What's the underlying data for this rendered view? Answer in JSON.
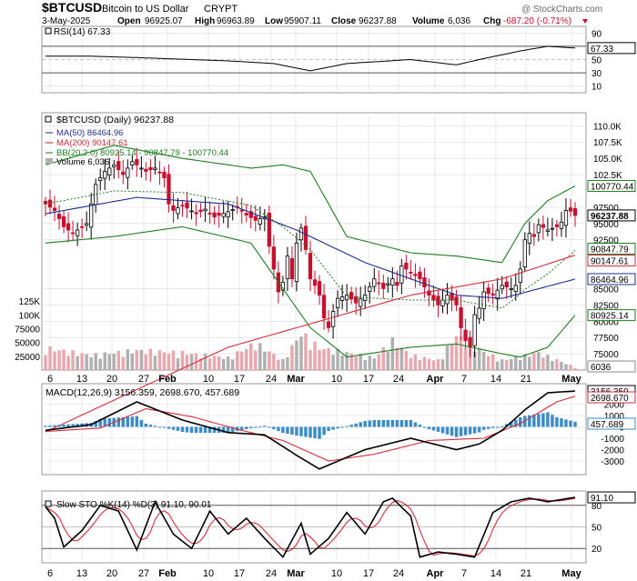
{
  "header": {
    "symbol": "$BTCUSD",
    "name": "Bitcoin to US Dollar",
    "exchange": "CRYPT",
    "copyright": "@ StockCharts.com",
    "date": "3-May-2025",
    "open_label": "Open",
    "open": "96925.07",
    "high_label": "High",
    "high": "96963.89",
    "low_label": "Low",
    "low": "95907.11",
    "close_label": "Close",
    "close": "96237.88",
    "volume_label": "Volume",
    "volume": "6,036",
    "chg_label": "Chg",
    "chg": "-687.20 (-0.71%)"
  },
  "colors": {
    "up": "#000000",
    "down": "#c8102e",
    "upFill": "#ffffff",
    "ma50": "#1f2f8c",
    "ma200": "#d22e3a",
    "bb": "#1e7d1e",
    "sar": "#1e7d1e",
    "macd": "#000000",
    "signal": "#d22e3a",
    "hist": "#3b8cc7",
    "volUp": "#b0b0b0",
    "volDown": "#e8a8b0",
    "grid": "#d9d9d9",
    "slow_k": "#000000",
    "slow_d": "#d22e3a"
  },
  "panels": {
    "rsi": {
      "legend": "RSI(14) 67.33",
      "value_label": "67.33",
      "ticks": [
        "90",
        "70",
        "50",
        "30",
        "10"
      ]
    },
    "price": {
      "legend_main": "$BTCUSD (Daily) 96237.88",
      "legend_ma50": "MA(50) 86464.96",
      "legend_ma200": "MA(200) 90147.61",
      "legend_bb": "BB(20,2.0) 80925.14 - 90847.79 - 100770.44",
      "legend_vol": "Volume 6,036",
      "ticks": [
        "110.0K",
        "107.5K",
        "105.0K",
        "102.5K",
        "97500",
        "95000",
        "92500",
        "85000",
        "82500",
        "80000",
        "77500",
        "75000"
      ],
      "labels": {
        "bb_upper": "100770.44",
        "close": "96237.88",
        "m1": "90847.79",
        "ma200": "90147.61",
        "ma50": "86464.96",
        "bb_lower": "80925.14",
        "vol": "6036"
      },
      "vol_ticks": [
        "125K",
        "100K",
        "75000",
        "50000",
        "25000"
      ]
    },
    "macd": {
      "legend": "MACD(12,26,9) 3156.359, 2698.670, 457.689",
      "ticks": [
        "2000",
        "1000",
        "0",
        "-1000",
        "-2000",
        "-3000"
      ],
      "labels": {
        "macd": "3156.359",
        "signal": "2698.670",
        "hist": "457.689"
      }
    },
    "sto": {
      "legend": "Slow STO %K(14) %D(3) 91.10, 90.01",
      "ticks": [
        "80",
        "50",
        "20"
      ],
      "value_label": "91.10"
    }
  },
  "x_axis": [
    "6",
    "13",
    "20",
    "27",
    "Feb",
    "10",
    "17",
    "24",
    "Mar",
    "10",
    "17",
    "24",
    "Apr",
    "7",
    "14",
    "21",
    "May"
  ],
  "chart_data": {
    "type": "candlestick",
    "title": "$BTCUSD Bitcoin to US Dollar CRYPT",
    "period": "Daily",
    "x_ticks": [
      "6",
      "13",
      "20",
      "27",
      "Feb",
      "10",
      "17",
      "24",
      "Mar",
      "10",
      "17",
      "24",
      "Apr",
      "7",
      "14",
      "21",
      "May"
    ],
    "close_keyframes": [
      [
        0,
        98000
      ],
      [
        2,
        97000
      ],
      [
        4,
        94500
      ],
      [
        6,
        93500
      ],
      [
        9,
        95000
      ],
      [
        11,
        101000
      ],
      [
        13,
        103000
      ],
      [
        15,
        104000
      ],
      [
        17,
        102500
      ],
      [
        19,
        104500
      ],
      [
        22,
        103000
      ],
      [
        24,
        103500
      ],
      [
        26,
        102000
      ],
      [
        27,
        98000
      ],
      [
        28,
        97000
      ],
      [
        30,
        97800
      ],
      [
        33,
        96500
      ],
      [
        35,
        97200
      ],
      [
        37,
        96000
      ],
      [
        40,
        96800
      ],
      [
        42,
        97500
      ],
      [
        44,
        96300
      ],
      [
        46,
        95500
      ],
      [
        48,
        96000
      ],
      [
        49,
        91500
      ],
      [
        50,
        88000
      ],
      [
        51,
        84500
      ],
      [
        52,
        86000
      ],
      [
        53,
        90000
      ],
      [
        54,
        86500
      ],
      [
        55,
        92000
      ],
      [
        56,
        94300
      ],
      [
        57,
        91000
      ],
      [
        58,
        86500
      ],
      [
        59,
        85500
      ],
      [
        60,
        84000
      ],
      [
        61,
        80500
      ],
      [
        62,
        79000
      ],
      [
        63,
        81500
      ],
      [
        64,
        83500
      ],
      [
        66,
        84000
      ],
      [
        68,
        82800
      ],
      [
        70,
        84000
      ],
      [
        72,
        86500
      ],
      [
        74,
        85000
      ],
      [
        76,
        86500
      ],
      [
        77,
        85500
      ],
      [
        78,
        88500
      ],
      [
        80,
        87500
      ],
      [
        82,
        86500
      ],
      [
        84,
        84000
      ],
      [
        86,
        82500
      ],
      [
        88,
        84000
      ],
      [
        90,
        82500
      ],
      [
        91,
        79000
      ],
      [
        92,
        77000
      ],
      [
        93,
        76000
      ],
      [
        94,
        81000
      ],
      [
        95,
        82000
      ],
      [
        96,
        84500
      ],
      [
        98,
        84000
      ],
      [
        100,
        85500
      ],
      [
        102,
        85000
      ],
      [
        103,
        85500
      ],
      [
        104,
        88000
      ],
      [
        105,
        92500
      ],
      [
        106,
        93500
      ],
      [
        107,
        93000
      ],
      [
        108,
        94800
      ],
      [
        110,
        94000
      ],
      [
        112,
        94500
      ],
      [
        113,
        95200
      ],
      [
        114,
        97000
      ],
      [
        115,
        96900
      ],
      [
        116,
        96237.88
      ]
    ],
    "ma50_keyframes": [
      [
        0,
        96500
      ],
      [
        20,
        99000
      ],
      [
        40,
        98000
      ],
      [
        55,
        94000
      ],
      [
        70,
        89000
      ],
      [
        90,
        84000
      ],
      [
        100,
        83500
      ],
      [
        116,
        86464.96
      ]
    ],
    "ma200_keyframes": [
      [
        0,
        63000
      ],
      [
        40,
        76000
      ],
      [
        80,
        84000
      ],
      [
        100,
        86500
      ],
      [
        116,
        90147.61
      ]
    ],
    "bb_upper_keyframes": [
      [
        0,
        104000
      ],
      [
        15,
        107000
      ],
      [
        30,
        105000
      ],
      [
        45,
        103500
      ],
      [
        52,
        104000
      ],
      [
        58,
        103000
      ],
      [
        66,
        93000
      ],
      [
        80,
        90500
      ],
      [
        90,
        90000
      ],
      [
        100,
        89000
      ],
      [
        105,
        95000
      ],
      [
        110,
        98500
      ],
      [
        116,
        100770.44
      ]
    ],
    "bb_lower_keyframes": [
      [
        0,
        92000
      ],
      [
        15,
        93000
      ],
      [
        30,
        94500
      ],
      [
        45,
        92000
      ],
      [
        52,
        85000
      ],
      [
        58,
        79000
      ],
      [
        66,
        74500
      ],
      [
        80,
        76000
      ],
      [
        90,
        76500
      ],
      [
        100,
        75000
      ],
      [
        104,
        74500
      ],
      [
        110,
        76000
      ],
      [
        116,
        80925.14
      ]
    ],
    "rsi_keyframes": [
      [
        0,
        55
      ],
      [
        10,
        55
      ],
      [
        20,
        53
      ],
      [
        40,
        48
      ],
      [
        50,
        44
      ],
      [
        58,
        33
      ],
      [
        66,
        44
      ],
      [
        80,
        50
      ],
      [
        90,
        42
      ],
      [
        95,
        50
      ],
      [
        104,
        63
      ],
      [
        110,
        70
      ],
      [
        116,
        67.33
      ]
    ],
    "macd_keyframes": [
      [
        0,
        -300
      ],
      [
        10,
        200
      ],
      [
        20,
        2200
      ],
      [
        30,
        600
      ],
      [
        40,
        -500
      ],
      [
        48,
        -700
      ],
      [
        55,
        -2500
      ],
      [
        60,
        -3700
      ],
      [
        70,
        -2000
      ],
      [
        80,
        -1000
      ],
      [
        90,
        -2000
      ],
      [
        95,
        -1500
      ],
      [
        100,
        -300
      ],
      [
        105,
        1500
      ],
      [
        110,
        3000
      ],
      [
        116,
        3156.359
      ]
    ],
    "signal_keyframes": [
      [
        0,
        -400
      ],
      [
        12,
        -100
      ],
      [
        22,
        1600
      ],
      [
        32,
        900
      ],
      [
        42,
        -200
      ],
      [
        52,
        -1200
      ],
      [
        62,
        -3000
      ],
      [
        72,
        -2400
      ],
      [
        84,
        -1200
      ],
      [
        96,
        -1000
      ],
      [
        104,
        300
      ],
      [
        112,
        2200
      ],
      [
        116,
        2698.67
      ]
    ],
    "sto_k_keyframes": [
      [
        0,
        78
      ],
      [
        2,
        62
      ],
      [
        4,
        22
      ],
      [
        8,
        45
      ],
      [
        12,
        80
      ],
      [
        16,
        72
      ],
      [
        20,
        18
      ],
      [
        24,
        85
      ],
      [
        28,
        40
      ],
      [
        32,
        20
      ],
      [
        36,
        72
      ],
      [
        40,
        40
      ],
      [
        44,
        62
      ],
      [
        48,
        34
      ],
      [
        52,
        8
      ],
      [
        56,
        55
      ],
      [
        58,
        12
      ],
      [
        62,
        34
      ],
      [
        66,
        70
      ],
      [
        70,
        40
      ],
      [
        74,
        85
      ],
      [
        76,
        90
      ],
      [
        80,
        65
      ],
      [
        82,
        8
      ],
      [
        86,
        15
      ],
      [
        90,
        12
      ],
      [
        94,
        8
      ],
      [
        98,
        70
      ],
      [
        102,
        85
      ],
      [
        106,
        90
      ],
      [
        110,
        85
      ],
      [
        116,
        91.1
      ]
    ],
    "volume_keyframes": [
      [
        0,
        45000
      ],
      [
        10,
        30000
      ],
      [
        20,
        40000
      ],
      [
        30,
        35000
      ],
      [
        40,
        25000
      ],
      [
        46,
        55000
      ],
      [
        52,
        20000
      ],
      [
        56,
        75000
      ],
      [
        60,
        45000
      ],
      [
        66,
        35000
      ],
      [
        72,
        25000
      ],
      [
        76,
        60000
      ],
      [
        80,
        30000
      ],
      [
        86,
        20000
      ],
      [
        90,
        70000
      ],
      [
        94,
        45000
      ],
      [
        100,
        20000
      ],
      [
        108,
        35000
      ],
      [
        116,
        6036
      ]
    ],
    "rsi_range": [
      0,
      100
    ],
    "price_range": [
      72500,
      112000
    ],
    "macd_range": [
      -4200,
      3800
    ],
    "sto_range": [
      0,
      100
    ]
  }
}
